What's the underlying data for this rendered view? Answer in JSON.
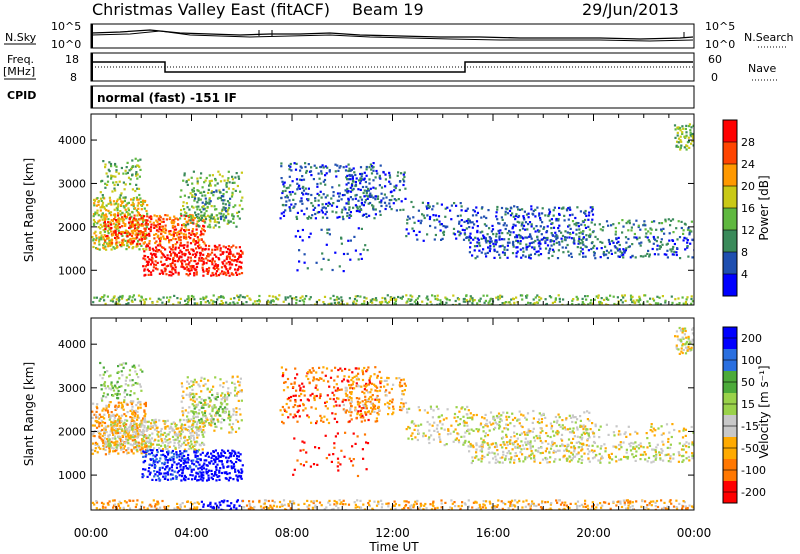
{
  "header": {
    "station": "Christmas Valley East (fitACF)",
    "beam": "Beam 19",
    "date": "29/Jun/2013"
  },
  "summary": {
    "nsky_label": "N.Sky",
    "nsearch_label": "N.Search",
    "noise_ticks": [
      "10^5",
      "10^0"
    ],
    "freq_label": "Freq.",
    "freq_unit": "[MHz]",
    "freq_ticks": [
      "18",
      "8"
    ],
    "nave_label": "Nave",
    "nave_ticks": [
      "60",
      "0"
    ],
    "cpid_label": "CPID",
    "cpid_text": "normal (fast) -151 IF"
  },
  "colors": {
    "power": [
      "#0000ff",
      "#1f4fb0",
      "#3a8a5a",
      "#5fb83f",
      "#c9c916",
      "#ff9900",
      "#ff4400",
      "#ff0000"
    ],
    "velocity": [
      "#0000ff",
      "#2a6fe0",
      "#4caa3a",
      "#9ad24a",
      "#c8c8c8",
      "#ffaa00",
      "#ff7700",
      "#ff0000"
    ]
  },
  "chart_data": [
    {
      "type": "heatmap",
      "ylabel": "Slant Range [km]",
      "yticks": [
        1000,
        2000,
        3000,
        4000
      ],
      "ylim": [
        200,
        4600
      ],
      "xticks": [
        "00:00",
        "04:00",
        "08:00",
        "12:00",
        "16:00",
        "20:00",
        "00:00"
      ],
      "colorbar": {
        "label": "Power [dB]",
        "ticks": [
          "4",
          "8",
          "12",
          "16",
          "20",
          "24",
          "28"
        ]
      }
    },
    {
      "type": "heatmap",
      "xlabel": "Time UT",
      "ylabel": "Slant Range [km]",
      "yticks": [
        1000,
        2000,
        3000,
        4000
      ],
      "ylim": [
        200,
        4600
      ],
      "xticks": [
        "00:00",
        "04:00",
        "08:00",
        "12:00",
        "16:00",
        "20:00",
        "00:00"
      ],
      "colorbar": {
        "label": "Velocity [m s⁻¹]",
        "ticks": [
          "200",
          "100",
          "50",
          "15",
          "-15",
          "-50",
          "-100",
          "-200"
        ]
      }
    }
  ]
}
